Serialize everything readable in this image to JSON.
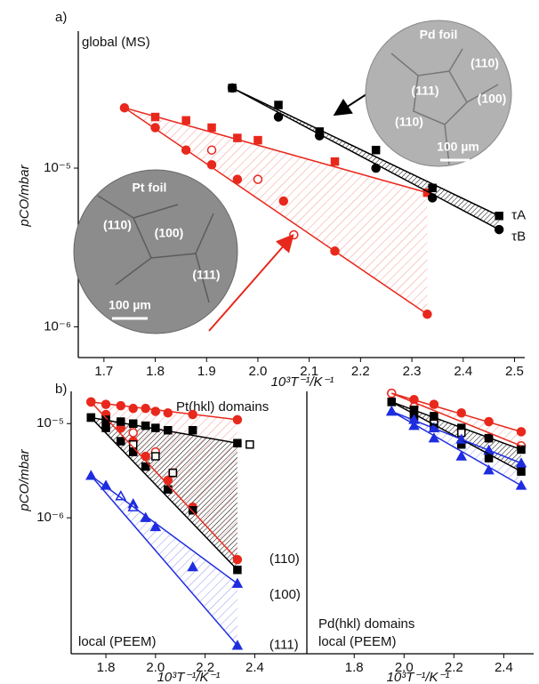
{
  "chart_data": [
    {
      "type": "scatter",
      "log_y": true,
      "annotations": [
        "a)",
        "global (MS)"
      ],
      "xlabel": "10³T⁻¹/K⁻¹",
      "ylabel": "pCO/mbar",
      "xlim": [
        1.65,
        2.52
      ],
      "ylim": [
        6.4e-07,
        7.3e-05
      ],
      "xticks": [
        1.7,
        1.8,
        1.9,
        {
          "value": 2,
          "label": "2.0"
        },
        2.1,
        2.2,
        2.3,
        2.4,
        2.5
      ],
      "yticks": [
        {
          "value": 1e-05,
          "label": "10⁻⁵"
        },
        {
          "value": 1e-06,
          "label": "10⁻⁶"
        }
      ],
      "series": [
        {
          "color": "#e8281c",
          "marker": "square",
          "x": [
            1.8,
            1.86,
            1.91,
            1.96,
            2.0,
            2.15,
            2.33
          ],
          "values": [
            2.1e-05,
            2e-05,
            1.8e-05,
            1.55e-05,
            1.5e-05,
            1.1e-05,
            7e-06
          ]
        },
        {
          "color": "#e8281c",
          "marker": "circle",
          "x": [
            1.74,
            1.8,
            1.86,
            1.91,
            1.96,
            2.05,
            2.15,
            2.33
          ],
          "values": [
            2.4e-05,
            1.8e-05,
            1.3e-05,
            1.05e-05,
            8.5e-06,
            6.2e-06,
            3e-06,
            1.2e-06
          ]
        },
        {
          "color": "#e8281c",
          "marker": "open-circle",
          "x": [
            1.91,
            2.0,
            2.07
          ],
          "values": [
            1.3e-05,
            8.5e-06,
            3.8e-06
          ]
        },
        {
          "color": "#000000",
          "marker": "square",
          "x": [
            1.95,
            2.04,
            2.12,
            2.23,
            2.34,
            2.47
          ],
          "values": [
            3.2e-05,
            2.5e-05,
            1.7e-05,
            1.3e-05,
            7.5e-06,
            5e-06
          ]
        },
        {
          "color": "#000000",
          "marker": "circle",
          "x": [
            1.95,
            2.04,
            2.12,
            2.23,
            2.34,
            2.47
          ],
          "values": [
            3.2e-05,
            2.1e-05,
            1.6e-05,
            1e-05,
            6.5e-06,
            4.1e-06
          ]
        },
        {
          "color": "#e8281c",
          "marker": "none",
          "line": true,
          "x": [
            1.74,
            2.33
          ],
          "values": [
            2.4e-05,
            7e-06
          ]
        },
        {
          "color": "#e8281c",
          "marker": "none",
          "line": true,
          "x": [
            1.74,
            2.33
          ],
          "values": [
            2.4e-05,
            1.2e-06
          ]
        },
        {
          "name": "τA",
          "color": "#000000",
          "marker": "none",
          "line": true,
          "x": [
            1.95,
            2.47
          ],
          "values": [
            3.2e-05,
            5e-06
          ]
        },
        {
          "name": "τB",
          "color": "#000000",
          "marker": "none",
          "line": true,
          "x": [
            1.95,
            2.47
          ],
          "values": [
            3.2e-05,
            4.1e-06
          ]
        }
      ],
      "bands": [
        [
          5,
          6
        ],
        [
          7,
          8
        ]
      ],
      "insets": [
        {
          "title": "Pd foil",
          "labels": [
            "(110)",
            "(111)",
            "(100)",
            "(110)"
          ],
          "scale_bar": "100 µm"
        },
        {
          "title": "Pt foil",
          "labels": [
            "(110)",
            "(100)",
            "(111)"
          ],
          "scale_bar": "100 µm"
        }
      ]
    },
    {
      "type": "scatter",
      "log_y": true,
      "annotations": [
        "b)",
        "Pt(hkl) domains",
        "local (PEEM)"
      ],
      "xlabel": "10³T⁻¹/K⁻¹",
      "ylabel": "pCO/mbar",
      "xlim": [
        1.66,
        2.61
      ],
      "ylim": [
        3.6e-08,
        2.2e-05
      ],
      "xticks": [
        1.8,
        {
          "value": 2,
          "label": "2.0"
        },
        2.2,
        2.4
      ],
      "yticks": [
        {
          "value": 1e-05,
          "label": "10⁻⁵"
        },
        {
          "value": 1e-06,
          "label": "10⁻⁶"
        }
      ],
      "series": [
        {
          "color": "#e8281c",
          "marker": "circle",
          "x": [
            1.74,
            1.8,
            1.86,
            1.91,
            1.96,
            2.0,
            2.05,
            2.15,
            2.33
          ],
          "values": [
            1.7e-05,
            1.6e-05,
            1.55e-05,
            1.45e-05,
            1.45e-05,
            1.35e-05,
            1.3e-05,
            1.25e-05,
            1.1e-05
          ]
        },
        {
          "color": "#e8281c",
          "marker": "circle",
          "x": [
            1.74,
            1.8,
            1.86,
            1.91,
            1.96,
            2.05,
            2.15,
            2.33
          ],
          "values": [
            1.7e-05,
            1.25e-05,
            9e-06,
            6.5e-06,
            4.5e-06,
            2.5e-06,
            1.3e-06,
            3.6e-07
          ]
        },
        {
          "color": "#e8281c",
          "marker": "open-circle",
          "x": [
            1.91,
            2.0,
            2.07
          ],
          "values": [
            8e-06,
            5e-06,
            3e-06
          ]
        },
        {
          "color": "#000000",
          "marker": "square",
          "x": [
            1.74,
            1.8,
            1.86,
            1.91,
            1.96,
            2.0,
            2.05,
            2.15,
            2.33
          ],
          "values": [
            1.16e-05,
            1.1e-05,
            1.05e-05,
            1e-05,
            9.5e-06,
            9e-06,
            8.5e-06,
            8.5e-06,
            6.2e-06
          ]
        },
        {
          "color": "#000000",
          "marker": "square",
          "x": [
            1.74,
            1.8,
            1.86,
            1.91,
            1.96,
            2.05,
            2.15,
            2.33
          ],
          "values": [
            1.16e-05,
            9e-06,
            6.5e-06,
            5e-06,
            3.5e-06,
            2e-06,
            1.2e-06,
            2.8e-07
          ]
        },
        {
          "color": "#000000",
          "marker": "open-square",
          "x": [
            1.91,
            2.0,
            2.07,
            2.38
          ],
          "values": [
            6e-06,
            4.5e-06,
            3e-06,
            6e-06
          ]
        },
        {
          "color": "#1f2de0",
          "marker": "triangle",
          "x": [
            1.74,
            1.8,
            1.86,
            1.91,
            1.96,
            2.0,
            2.15,
            2.33,
            2.33
          ],
          "values": [
            2.8e-06,
            2.2e-06,
            1.7e-06,
            1.4e-06,
            1e-06,
            8e-07,
            3e-07,
            2e-07,
            4.4e-08
          ]
        },
        {
          "color": "#1f2de0",
          "marker": "open-triangle",
          "x": [
            1.86,
            1.91
          ],
          "values": [
            1.7e-06,
            1.3e-06
          ]
        },
        {
          "color": "#e8281c",
          "marker": "none",
          "line": true,
          "x": [
            1.74,
            2.33
          ],
          "values": [
            1.7e-05,
            1.1e-05
          ]
        },
        {
          "name": "(110)",
          "color": "#e8281c",
          "marker": "none",
          "line": true,
          "x": [
            1.74,
            2.33
          ],
          "values": [
            1.7e-05,
            3.6e-07
          ]
        },
        {
          "color": "#000000",
          "marker": "none",
          "line": true,
          "x": [
            1.74,
            2.33
          ],
          "values": [
            1.16e-05,
            6.2e-06
          ]
        },
        {
          "name": "(100)",
          "color": "#000000",
          "marker": "none",
          "line": true,
          "x": [
            1.74,
            2.33
          ],
          "values": [
            1.16e-05,
            2.8e-07
          ]
        },
        {
          "color": "#1f2de0",
          "marker": "none",
          "line": true,
          "x": [
            1.74,
            2.33
          ],
          "values": [
            2.8e-06,
            2e-07
          ]
        },
        {
          "name": "(111)",
          "color": "#1f2de0",
          "marker": "none",
          "line": true,
          "x": [
            1.74,
            2.33
          ],
          "values": [
            2.8e-06,
            4.4e-08
          ]
        }
      ],
      "bands": [
        [
          8,
          9
        ],
        [
          10,
          11
        ],
        [
          12,
          13
        ]
      ]
    },
    {
      "type": "scatter",
      "log_y": true,
      "annotations": [
        "Pd(hkl) domains",
        "local (PEEM)"
      ],
      "xlabel": "10³T⁻¹/K⁻¹",
      "xlim": [
        1.61,
        2.52
      ],
      "ylim": [
        3.6e-08,
        2.2e-05
      ],
      "xticks": [
        1.8,
        {
          "value": 2,
          "label": "2.0"
        },
        2.2,
        2.4
      ],
      "series": [
        {
          "color": "#e8281c",
          "marker": "circle",
          "x": [
            1.95,
            2.04,
            2.12,
            2.23,
            2.34,
            2.47
          ],
          "values": [
            2.1e-05,
            1.8e-05,
            1.6e-05,
            1.3e-05,
            1.05e-05,
            8.2e-06
          ]
        },
        {
          "color": "#e8281c",
          "marker": "open-circle",
          "x": [
            1.95,
            2.04,
            2.12,
            2.23,
            2.34,
            2.47
          ],
          "values": [
            2.1e-05,
            1.5e-05,
            1.1e-05,
            8.5e-06,
            7e-06,
            5.8e-06
          ]
        },
        {
          "color": "#000000",
          "marker": "square",
          "x": [
            1.95,
            2.04,
            2.12,
            2.23,
            2.34,
            2.47
          ],
          "values": [
            1.7e-05,
            1.4e-05,
            1.2e-05,
            9e-06,
            7e-06,
            5.3e-06
          ]
        },
        {
          "color": "#000000",
          "marker": "open-square",
          "x": [
            2.04,
            2.12,
            2.23
          ],
          "values": [
            1.2e-05,
            1e-05,
            8e-06
          ]
        },
        {
          "color": "#000000",
          "marker": "square",
          "x": [
            1.95,
            2.04,
            2.12,
            2.23,
            2.34,
            2.47
          ],
          "values": [
            1.7e-05,
            1.2e-05,
            9e-06,
            6e-06,
            4.3e-06,
            3.1e-06
          ]
        },
        {
          "color": "#1f2de0",
          "marker": "triangle",
          "x": [
            1.95,
            2.04,
            2.12,
            2.23,
            2.34,
            2.47
          ],
          "values": [
            1.35e-05,
            1.1e-05,
            9e-06,
            6.8e-06,
            5.2e-06,
            3.8e-06
          ]
        },
        {
          "color": "#1f2de0",
          "marker": "triangle",
          "x": [
            1.95,
            2.04,
            2.12,
            2.23,
            2.34,
            2.47
          ],
          "values": [
            1.35e-05,
            9.5e-06,
            7e-06,
            4.5e-06,
            3.2e-06,
            2.2e-06
          ]
        },
        {
          "color": "#e8281c",
          "marker": "none",
          "line": true,
          "x": [
            1.95,
            2.47
          ],
          "values": [
            2.1e-05,
            8.2e-06
          ]
        },
        {
          "color": "#e8281c",
          "marker": "none",
          "line": true,
          "x": [
            1.95,
            2.47
          ],
          "values": [
            2.1e-05,
            5.8e-06
          ]
        },
        {
          "color": "#000000",
          "marker": "none",
          "line": true,
          "x": [
            1.95,
            2.47
          ],
          "values": [
            1.7e-05,
            5.3e-06
          ]
        },
        {
          "color": "#000000",
          "marker": "none",
          "line": true,
          "x": [
            1.95,
            2.47
          ],
          "values": [
            1.7e-05,
            3.1e-06
          ]
        },
        {
          "color": "#1f2de0",
          "marker": "none",
          "line": true,
          "x": [
            1.95,
            2.47
          ],
          "values": [
            1.35e-05,
            3.8e-06
          ]
        },
        {
          "color": "#1f2de0",
          "marker": "none",
          "line": true,
          "x": [
            1.95,
            2.47
          ],
          "values": [
            1.35e-05,
            2.2e-06
          ]
        }
      ],
      "bands": [
        [
          7,
          8
        ],
        [
          9,
          10
        ],
        [
          11,
          12
        ]
      ]
    }
  ]
}
